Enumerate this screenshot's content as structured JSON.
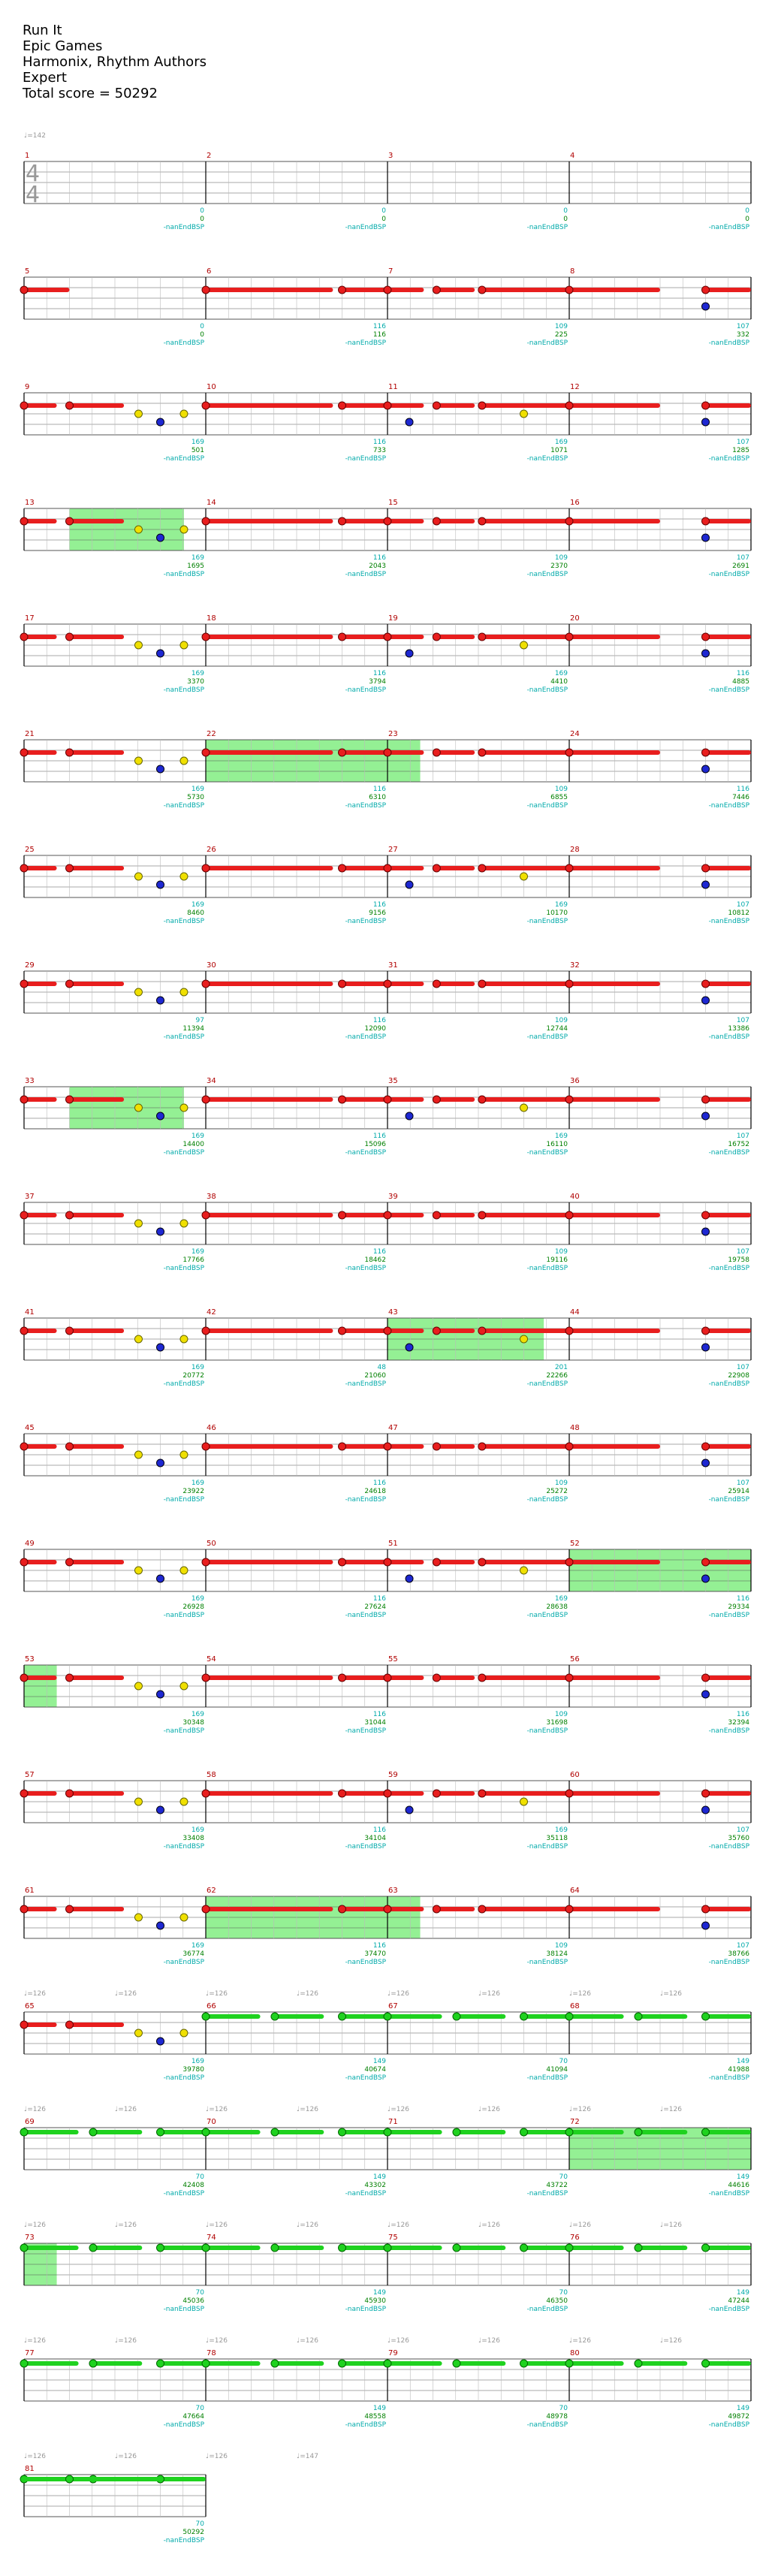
{
  "header": {
    "song": "Run It",
    "artist": "Epic Games",
    "charter": "Harmonix, Rhythm Authors",
    "difficulty": "Expert",
    "total": "Total score = 50292"
  },
  "tempo_start": "♩=142",
  "time_signature": [
    "4",
    "4"
  ],
  "sub_label": "-nanEndBSP",
  "colors": {
    "lane_red": "#e81e1e",
    "lane_yellow": "#f0e000",
    "lane_blue": "#1e28d2",
    "lane_green": "#1fd21f",
    "overdrive": "#88ee88",
    "measure_number": "#b00000",
    "score": "#008000"
  },
  "measures": [
    {
      "n": "1",
      "s1": "0",
      "s2": "0"
    },
    {
      "n": "2",
      "s1": "0",
      "s2": "0"
    },
    {
      "n": "3",
      "s1": "0",
      "s2": "0"
    },
    {
      "n": "4",
      "s1": "0",
      "s2": "0"
    },
    {
      "n": "5",
      "s1": "0",
      "s2": "0"
    },
    {
      "n": "6",
      "s1": "116",
      "s2": "116"
    },
    {
      "n": "7",
      "s1": "109",
      "s2": "225"
    },
    {
      "n": "8",
      "s1": "107",
      "s2": "332"
    },
    {
      "n": "9",
      "s1": "169",
      "s2": "501"
    },
    {
      "n": "10",
      "s1": "116",
      "s2": "733"
    },
    {
      "n": "11",
      "s1": "169",
      "s2": "1071"
    },
    {
      "n": "12",
      "s1": "107",
      "s2": "1285"
    },
    {
      "n": "13",
      "s1": "169",
      "s2": "1695"
    },
    {
      "n": "14",
      "s1": "116",
      "s2": "2043"
    },
    {
      "n": "15",
      "s1": "109",
      "s2": "2370"
    },
    {
      "n": "16",
      "s1": "107",
      "s2": "2691"
    },
    {
      "n": "17",
      "s1": "169",
      "s2": "3370"
    },
    {
      "n": "18",
      "s1": "116",
      "s2": "3794"
    },
    {
      "n": "19",
      "s1": "169",
      "s2": "4410"
    },
    {
      "n": "20",
      "s1": "116",
      "s2": "4885"
    },
    {
      "n": "21",
      "s1": "169",
      "s2": "5730"
    },
    {
      "n": "22",
      "s1": "116",
      "s2": "6310"
    },
    {
      "n": "23",
      "s1": "109",
      "s2": "6855"
    },
    {
      "n": "24",
      "s1": "116",
      "s2": "7446"
    },
    {
      "n": "25",
      "s1": "169",
      "s2": "8460"
    },
    {
      "n": "26",
      "s1": "116",
      "s2": "9156"
    },
    {
      "n": "27",
      "s1": "169",
      "s2": "10170"
    },
    {
      "n": "28",
      "s1": "107",
      "s2": "10812"
    },
    {
      "n": "29",
      "s1": "97",
      "s2": "11394"
    },
    {
      "n": "30",
      "s1": "116",
      "s2": "12090"
    },
    {
      "n": "31",
      "s1": "109",
      "s2": "12744"
    },
    {
      "n": "32",
      "s1": "107",
      "s2": "13386"
    },
    {
      "n": "33",
      "s1": "169",
      "s2": "14400"
    },
    {
      "n": "34",
      "s1": "116",
      "s2": "15096"
    },
    {
      "n": "35",
      "s1": "169",
      "s2": "16110"
    },
    {
      "n": "36",
      "s1": "107",
      "s2": "16752"
    },
    {
      "n": "37",
      "s1": "169",
      "s2": "17766"
    },
    {
      "n": "38",
      "s1": "116",
      "s2": "18462"
    },
    {
      "n": "39",
      "s1": "109",
      "s2": "19116"
    },
    {
      "n": "40",
      "s1": "107",
      "s2": "19758"
    },
    {
      "n": "41",
      "s1": "169",
      "s2": "20772"
    },
    {
      "n": "42",
      "s1": "48",
      "s2": "21060"
    },
    {
      "n": "43",
      "s1": "201",
      "s2": "22266"
    },
    {
      "n": "44",
      "s1": "107",
      "s2": "22908"
    },
    {
      "n": "45",
      "s1": "169",
      "s2": "23922"
    },
    {
      "n": "46",
      "s1": "116",
      "s2": "24618"
    },
    {
      "n": "47",
      "s1": "109",
      "s2": "25272"
    },
    {
      "n": "48",
      "s1": "107",
      "s2": "25914"
    },
    {
      "n": "49",
      "s1": "169",
      "s2": "26928"
    },
    {
      "n": "50",
      "s1": "116",
      "s2": "27624"
    },
    {
      "n": "51",
      "s1": "169",
      "s2": "28638"
    },
    {
      "n": "52",
      "s1": "116",
      "s2": "29334"
    },
    {
      "n": "53",
      "s1": "169",
      "s2": "30348"
    },
    {
      "n": "54",
      "s1": "116",
      "s2": "31044"
    },
    {
      "n": "55",
      "s1": "109",
      "s2": "31698"
    },
    {
      "n": "56",
      "s1": "116",
      "s2": "32394"
    },
    {
      "n": "57",
      "s1": "169",
      "s2": "33408"
    },
    {
      "n": "58",
      "s1": "116",
      "s2": "34104"
    },
    {
      "n": "59",
      "s1": "169",
      "s2": "35118"
    },
    {
      "n": "60",
      "s1": "107",
      "s2": "35760"
    },
    {
      "n": "61",
      "s1": "169",
      "s2": "36774"
    },
    {
      "n": "62",
      "s1": "116",
      "s2": "37470"
    },
    {
      "n": "63",
      "s1": "109",
      "s2": "38124"
    },
    {
      "n": "64",
      "s1": "107",
      "s2": "38766"
    },
    {
      "n": "65",
      "s1": "169",
      "s2": "39780"
    },
    {
      "n": "66",
      "s1": "149",
      "s2": "40674"
    },
    {
      "n": "67",
      "s1": "70",
      "s2": "41094"
    },
    {
      "n": "68",
      "s1": "149",
      "s2": "41988"
    },
    {
      "n": "69",
      "s1": "70",
      "s2": "42408"
    },
    {
      "n": "70",
      "s1": "149",
      "s2": "43302"
    },
    {
      "n": "71",
      "s1": "70",
      "s2": "43722"
    },
    {
      "n": "72",
      "s1": "149",
      "s2": "44616"
    },
    {
      "n": "73",
      "s1": "70",
      "s2": "45036"
    },
    {
      "n": "74",
      "s1": "149",
      "s2": "45930"
    },
    {
      "n": "75",
      "s1": "70",
      "s2": "46350"
    },
    {
      "n": "76",
      "s1": "149",
      "s2": "47244"
    },
    {
      "n": "77",
      "s1": "70",
      "s2": "47664"
    },
    {
      "n": "78",
      "s1": "149",
      "s2": "48558"
    },
    {
      "n": "79",
      "s1": "70",
      "s2": "48978"
    },
    {
      "n": "80",
      "s1": "149",
      "s2": "49872"
    },
    {
      "n": "81",
      "s1": "70",
      "s2": "50292"
    }
  ],
  "tempo_rows": [
    {
      "row": 16,
      "labels": [
        "♩=126",
        "♩=126",
        "♩=126",
        "♩=126",
        "♩=126",
        "♩=126",
        "♩=126",
        "♩=126"
      ]
    },
    {
      "row": 17,
      "labels": [
        "♩=126",
        "♩=126",
        "♩=126",
        "♩=126",
        "♩=126",
        "♩=126",
        "♩=126",
        "♩=126"
      ]
    },
    {
      "row": 18,
      "labels": [
        "♩=126",
        "♩=126",
        "♩=126",
        "♩=126",
        "♩=126",
        "♩=126",
        "♩=126",
        "♩=126"
      ]
    },
    {
      "row": 19,
      "labels": [
        "♩=126",
        "♩=126",
        "♩=126",
        "♩=126",
        "♩=126",
        "♩=126",
        "♩=126",
        "♩=126"
      ]
    },
    {
      "row": 20,
      "labels": [
        "♩=126",
        "♩=126",
        "♩=126",
        "♩=147"
      ]
    }
  ]
}
